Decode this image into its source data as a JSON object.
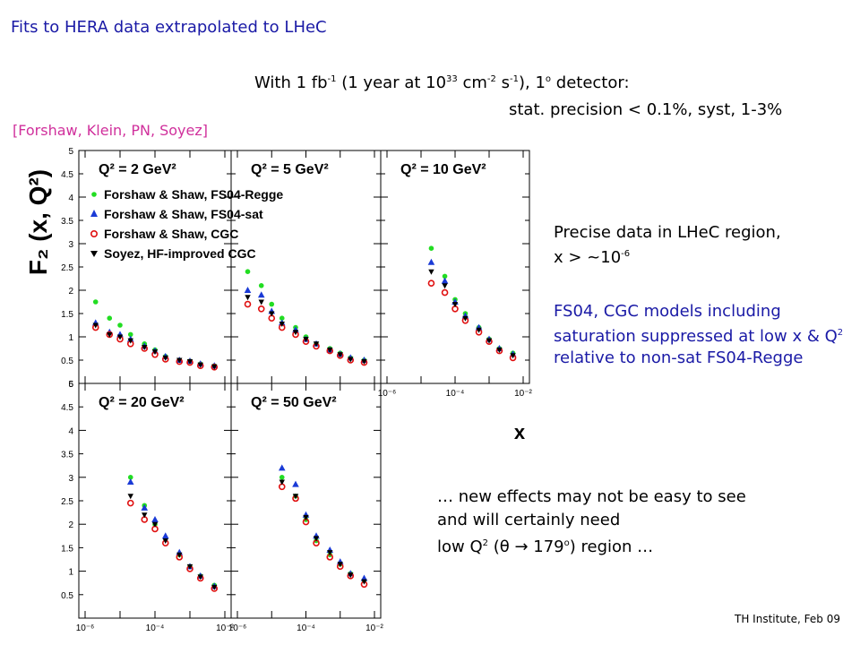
{
  "title": "Fits to HERA data extrapolated to LHeC",
  "luminosity": {
    "line1_a": "With 1 fb",
    "line1_a_sup": "-1",
    "line1_b": " (1 year at 10",
    "line1_b_sup": "33",
    "line1_c": " cm",
    "line1_c_sup": "-2",
    "line1_d": " s",
    "line1_d_sup": "-1",
    "line1_e": "), 1",
    "line1_e_sup": "o",
    "line1_f": " detector:",
    "line2": "stat. precision < 0.1%, syst, 1-3%"
  },
  "references": "[Forshaw, Klein, PN, Soyez]",
  "notes": {
    "precise_a": "Precise data in LHeC region,",
    "precise_b": "x > ~10",
    "precise_b_sup": "-6",
    "fs04_a": "FS04, CGC models including saturation suppressed at low x & Q",
    "fs04_sup": "2",
    "fs04_b": " relative to non-sat FS04-Regge",
    "effects_a": "… new effects may not be easy to see and will certainly need",
    "effects_b": "low Q",
    "effects_b_sup": "2",
    "effects_c": " (θ → 179",
    "effects_c_sup": "o",
    "effects_d": ") region …"
  },
  "footer": "TH Institute, Feb 09",
  "colors": {
    "accent_blue": "#1a1aa6",
    "reference_pink": "#d0309c",
    "fs04_regge": "#22dd22",
    "fs04_sat": "#1a3ad6",
    "fs04_cgc": "#e01010",
    "soyez_cgc": "#000000"
  },
  "chart_data": {
    "type": "scatter",
    "ylabel": "F₂ (x, Q²)",
    "xlabel": "x",
    "xscale": "log",
    "xlim": [
      1e-06,
      0.01
    ],
    "ylim": [
      0,
      5
    ],
    "y_ticks": [
      "5",
      "4.5",
      "4",
      "3.5",
      "3",
      "2.5",
      "2",
      "1.5",
      "1",
      "0.5"
    ],
    "y_bottom_label": "0",
    "y_bottom_label_panel2": "6",
    "x_ticks": [
      "10⁻⁶",
      "10⁻⁴",
      "10⁻²"
    ],
    "legend": [
      {
        "name": "Forshaw & Shaw, FS04-Regge",
        "marker": "circle",
        "color": "#22dd22"
      },
      {
        "name": "Forshaw & Shaw, FS04-sat",
        "marker": "triangle-up",
        "color": "#1a3ad6"
      },
      {
        "name": "Forshaw & Shaw, CGC",
        "marker": "open-circle",
        "color": "#e01010"
      },
      {
        "name": "Soyez, HF-improved CGC",
        "marker": "triangle-down",
        "color": "#000000"
      }
    ],
    "legend_placement": "upper-left of first panel",
    "panels": [
      {
        "label": "Q² = 2 GeV²",
        "x": [
          2e-06,
          5e-06,
          1e-05,
          2e-05,
          5e-05,
          0.0001,
          0.0002,
          0.0005,
          0.001,
          0.002,
          0.005
        ],
        "series": [
          {
            "name": "Forshaw & Shaw, FS04-Regge",
            "values": [
              1.75,
              1.4,
              1.25,
              1.05,
              0.85,
              0.72,
              0.58,
              0.5,
              0.48,
              0.42,
              0.38
            ]
          },
          {
            "name": "Forshaw & Shaw, FS04-sat",
            "values": [
              1.3,
              1.1,
              1.05,
              0.95,
              0.8,
              0.7,
              0.58,
              0.5,
              0.48,
              0.42,
              0.38
            ]
          },
          {
            "name": "Forshaw & Shaw, CGC",
            "values": [
              1.2,
              1.05,
              0.95,
              0.85,
              0.75,
              0.62,
              0.52,
              0.47,
              0.45,
              0.38,
              0.35
            ]
          },
          {
            "name": "Soyez, HF-improved CGC",
            "values": [
              1.25,
              1.05,
              1.0,
              0.92,
              0.78,
              0.68,
              0.55,
              0.5,
              0.47,
              0.4,
              0.36
            ]
          }
        ]
      },
      {
        "label": "Q² = 5 GeV²",
        "x": [
          2e-06,
          5e-06,
          1e-05,
          2e-05,
          5e-05,
          0.0001,
          0.0002,
          0.0005,
          0.001,
          0.002,
          0.005
        ],
        "series": [
          {
            "name": "Forshaw & Shaw, FS04-Regge",
            "values": [
              2.4,
              2.1,
              1.7,
              1.4,
              1.2,
              1.0,
              0.85,
              0.75,
              0.65,
              0.55,
              0.5
            ]
          },
          {
            "name": "Forshaw & Shaw, FS04-sat",
            "values": [
              2.0,
              1.9,
              1.55,
              1.3,
              1.15,
              0.95,
              0.85,
              0.72,
              0.63,
              0.55,
              0.5
            ]
          },
          {
            "name": "Forshaw & Shaw, CGC",
            "values": [
              1.7,
              1.6,
              1.4,
              1.2,
              1.05,
              0.9,
              0.8,
              0.7,
              0.6,
              0.5,
              0.45
            ]
          },
          {
            "name": "Soyez, HF-improved CGC",
            "values": [
              1.85,
              1.75,
              1.5,
              1.28,
              1.1,
              0.95,
              0.85,
              0.72,
              0.62,
              0.52,
              0.47
            ]
          }
        ]
      },
      {
        "label": "Q² = 10 GeV²",
        "x": [
          2e-05,
          5e-05,
          0.0001,
          0.0002,
          0.0005,
          0.001,
          0.002,
          0.005
        ],
        "series": [
          {
            "name": "Forshaw & Shaw, FS04-Regge",
            "values": [
              2.9,
              2.3,
              1.8,
              1.5,
              1.2,
              0.95,
              0.75,
              0.65
            ]
          },
          {
            "name": "Forshaw & Shaw, FS04-sat",
            "values": [
              2.6,
              2.2,
              1.75,
              1.45,
              1.2,
              0.95,
              0.75,
              0.63
            ]
          },
          {
            "name": "Forshaw & Shaw, CGC",
            "values": [
              2.15,
              1.95,
              1.6,
              1.35,
              1.1,
              0.9,
              0.7,
              0.55
            ]
          },
          {
            "name": "Soyez, HF-improved CGC",
            "values": [
              2.4,
              2.1,
              1.7,
              1.4,
              1.15,
              0.92,
              0.72,
              0.6
            ]
          }
        ]
      },
      {
        "label": "Q² = 20 GeV²",
        "x": [
          2e-05,
          5e-05,
          0.0001,
          0.0002,
          0.0005,
          0.001,
          0.002,
          0.005
        ],
        "series": [
          {
            "name": "Forshaw & Shaw, FS04-Regge",
            "values": [
              3.0,
              2.4,
              2.0,
              1.7,
              1.35,
              1.1,
              0.9,
              0.7
            ]
          },
          {
            "name": "Forshaw & Shaw, FS04-sat",
            "values": [
              2.9,
              2.35,
              2.1,
              1.75,
              1.4,
              1.1,
              0.9,
              0.68
            ]
          },
          {
            "name": "Forshaw & Shaw, CGC",
            "values": [
              2.45,
              2.1,
              1.9,
              1.6,
              1.3,
              1.05,
              0.85,
              0.63
            ]
          },
          {
            "name": "Soyez, HF-improved CGC",
            "values": [
              2.6,
              2.2,
              2.0,
              1.65,
              1.35,
              1.1,
              0.88,
              0.66
            ]
          }
        ]
      },
      {
        "label": "Q² = 50 GeV²",
        "x": [
          2e-05,
          5e-05,
          0.0001,
          0.0002,
          0.0005,
          0.001,
          0.002,
          0.005
        ],
        "series": [
          {
            "name": "Forshaw & Shaw, FS04-Regge",
            "values": [
              3.0,
              2.6,
              2.1,
              1.65,
              1.35,
              1.15,
              0.95,
              0.8
            ]
          },
          {
            "name": "Forshaw & Shaw, FS04-sat",
            "values": [
              3.2,
              2.85,
              2.2,
              1.75,
              1.45,
              1.2,
              0.95,
              0.85
            ]
          },
          {
            "name": "Forshaw & Shaw, CGC",
            "values": [
              2.8,
              2.55,
              2.05,
              1.6,
              1.3,
              1.1,
              0.9,
              0.72
            ]
          },
          {
            "name": "Soyez, HF-improved CGC",
            "values": [
              2.9,
              2.6,
              2.15,
              1.7,
              1.4,
              1.15,
              0.92,
              0.78
            ]
          }
        ]
      }
    ]
  }
}
